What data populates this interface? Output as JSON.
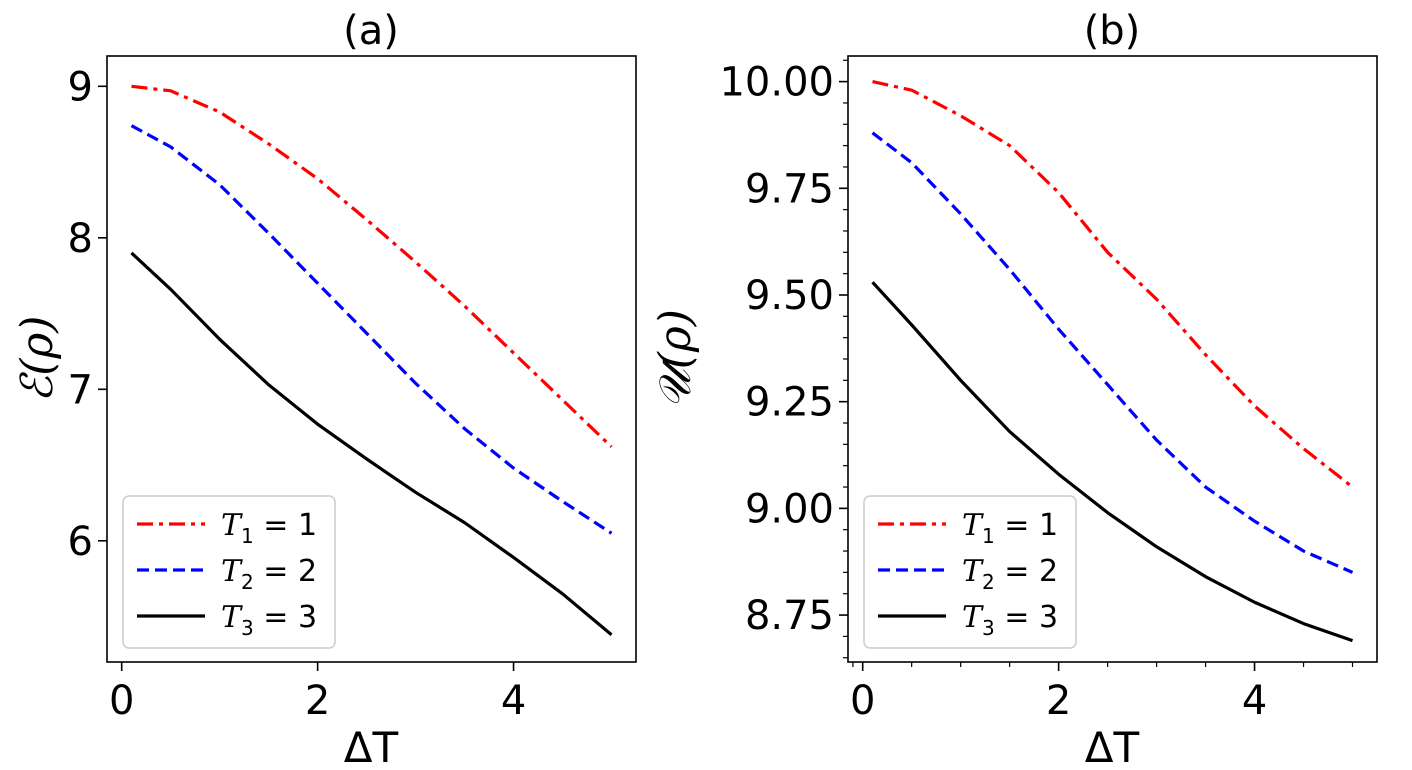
{
  "chart_data": [
    {
      "type": "line",
      "title": "(a)",
      "xlabel": "ΔT",
      "ylabel": "ℰ(ρ)",
      "xlim": [
        -0.15,
        5.25
      ],
      "ylim": [
        5.2,
        9.2
      ],
      "xticks": [
        0,
        2,
        4
      ],
      "xtick_labels": [
        "0",
        "2",
        "4"
      ],
      "yticks": [
        6,
        7,
        8,
        9
      ],
      "ytick_labels": [
        "6",
        "7",
        "8",
        "9"
      ],
      "minor_yticks": [],
      "minor_xticks": [],
      "grid": false,
      "legend_position": "lower-left",
      "series": [
        {
          "name": "T1 = 1",
          "label_main": "T",
          "label_sub": "1",
          "label_rest": " = 1",
          "color": "#ff0000",
          "dash": "dashdot",
          "x": [
            0.1,
            0.5,
            1.0,
            1.5,
            2.0,
            2.5,
            3.0,
            3.5,
            4.0,
            4.5,
            5.0
          ],
          "y": [
            9.0,
            8.97,
            8.83,
            8.62,
            8.39,
            8.12,
            7.84,
            7.55,
            7.24,
            6.93,
            6.62
          ]
        },
        {
          "name": "T2 = 2",
          "label_main": "T",
          "label_sub": "2",
          "label_rest": " = 2",
          "color": "#0000ff",
          "dash": "dashed",
          "x": [
            0.1,
            0.5,
            1.0,
            1.5,
            2.0,
            2.5,
            3.0,
            3.5,
            4.0,
            4.5,
            5.0
          ],
          "y": [
            8.74,
            8.6,
            8.35,
            8.03,
            7.7,
            7.37,
            7.04,
            6.74,
            6.48,
            6.26,
            6.05
          ]
        },
        {
          "name": "T3 = 3",
          "label_main": "T",
          "label_sub": "3",
          "label_rest": " = 3",
          "color": "#000000",
          "dash": "solid",
          "x": [
            0.1,
            0.5,
            1.0,
            1.5,
            2.0,
            2.5,
            3.0,
            3.5,
            4.0,
            4.5,
            5.0
          ],
          "y": [
            7.9,
            7.66,
            7.33,
            7.03,
            6.77,
            6.54,
            6.32,
            6.12,
            5.89,
            5.65,
            5.38
          ]
        }
      ]
    },
    {
      "type": "line",
      "title": "(b)",
      "xlabel": "ΔT",
      "ylabel": "𝒰(ρ)",
      "xlim": [
        -0.15,
        5.25
      ],
      "ylim": [
        8.64,
        10.06
      ],
      "xticks": [
        0,
        2,
        4
      ],
      "xtick_labels": [
        "0",
        "2",
        "4"
      ],
      "yticks": [
        8.75,
        9.0,
        9.25,
        9.5,
        9.75,
        10.0
      ],
      "ytick_labels": [
        "8.75",
        "9.00",
        "9.25",
        "9.50",
        "9.75",
        "10.00"
      ],
      "minor_yticks": [
        8.65,
        8.7,
        8.8,
        8.85,
        8.9,
        8.95,
        9.05,
        9.1,
        9.15,
        9.2,
        9.3,
        9.35,
        9.4,
        9.45,
        9.55,
        9.6,
        9.65,
        9.7,
        9.8,
        9.85,
        9.9,
        9.95,
        10.05
      ],
      "minor_xticks": [
        -0.1,
        0.5,
        1.0,
        1.5,
        2.5,
        3.0,
        3.5,
        4.5,
        5.0
      ],
      "grid": false,
      "legend_position": "lower-left",
      "series": [
        {
          "name": "T1 = 1",
          "label_main": "T",
          "label_sub": "1",
          "label_rest": " = 1",
          "color": "#ff0000",
          "dash": "dashdot",
          "x": [
            0.1,
            0.5,
            1.0,
            1.5,
            2.0,
            2.5,
            3.0,
            3.5,
            4.0,
            4.5,
            5.0
          ],
          "y": [
            10.0,
            9.98,
            9.92,
            9.85,
            9.74,
            9.6,
            9.49,
            9.36,
            9.24,
            9.14,
            9.05
          ]
        },
        {
          "name": "T2 = 2",
          "label_main": "T",
          "label_sub": "2",
          "label_rest": " = 2",
          "color": "#0000ff",
          "dash": "dashed",
          "x": [
            0.1,
            0.5,
            1.0,
            1.5,
            2.0,
            2.5,
            3.0,
            3.5,
            4.0,
            4.5,
            5.0
          ],
          "y": [
            9.88,
            9.81,
            9.69,
            9.56,
            9.42,
            9.29,
            9.16,
            9.05,
            8.97,
            8.9,
            8.85
          ]
        },
        {
          "name": "T3 = 3",
          "label_main": "T",
          "label_sub": "3",
          "label_rest": " = 3",
          "color": "#000000",
          "dash": "solid",
          "x": [
            0.1,
            0.5,
            1.0,
            1.5,
            2.0,
            2.5,
            3.0,
            3.5,
            4.0,
            4.5,
            5.0
          ],
          "y": [
            9.53,
            9.43,
            9.3,
            9.18,
            9.08,
            8.99,
            8.91,
            8.84,
            8.78,
            8.73,
            8.69
          ]
        }
      ]
    }
  ]
}
